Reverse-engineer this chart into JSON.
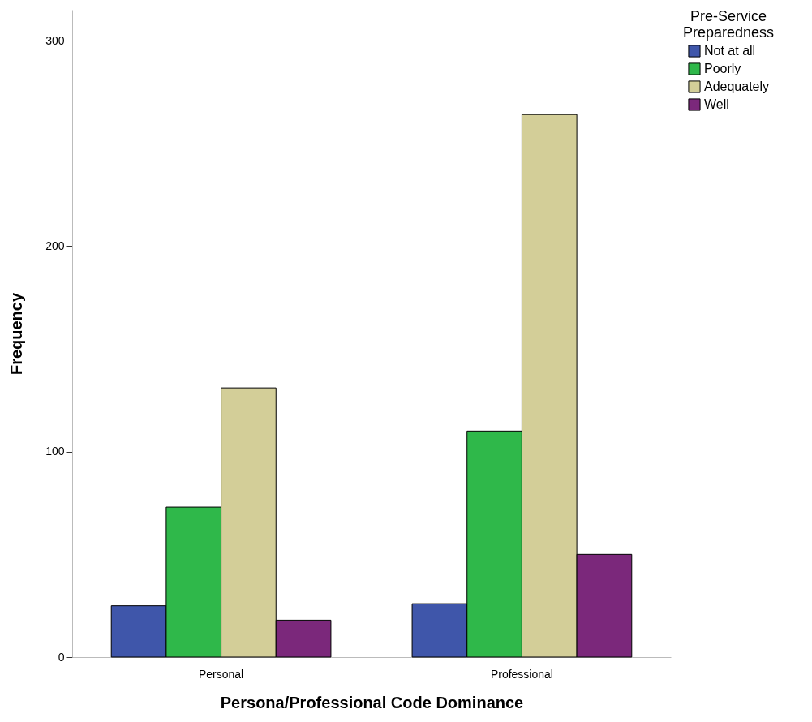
{
  "chart_data": {
    "type": "bar",
    "xlabel": "Persona/Professional Code Dominance",
    "ylabel": "Frequency",
    "legend_title": "Pre-Service Preparedness",
    "categories": [
      "Personal",
      "Professional"
    ],
    "series": [
      {
        "name": "Not at all",
        "color": "#3f56aa",
        "values": [
          25,
          26
        ]
      },
      {
        "name": "Poorly",
        "color": "#2fb84a",
        "values": [
          73,
          110
        ]
      },
      {
        "name": "Adequately",
        "color": "#d3ce98",
        "values": [
          131,
          264
        ]
      },
      {
        "name": "Well",
        "color": "#7b287b",
        "values": [
          18,
          50
        ]
      }
    ],
    "ylim": [
      0,
      315
    ],
    "yticks": [
      0,
      100,
      200,
      300
    ],
    "grid": false,
    "legend": "top right"
  }
}
